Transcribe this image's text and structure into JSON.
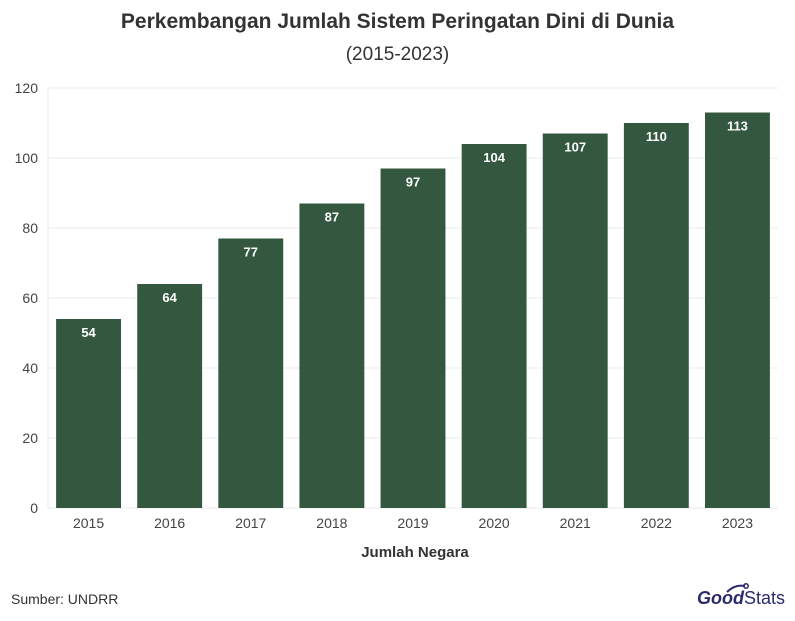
{
  "chart_data": {
    "type": "bar",
    "title": "Perkembangan Jumlah Sistem Peringatan Dini di Dunia",
    "subtitle": "(2015-2023)",
    "categories": [
      "2015",
      "2016",
      "2017",
      "2018",
      "2019",
      "2020",
      "2021",
      "2022",
      "2023"
    ],
    "values": [
      54,
      64,
      77,
      87,
      97,
      104,
      107,
      110,
      113
    ],
    "xlabel": "Jumlah Negara",
    "ylabel": "",
    "ylim": [
      0,
      120
    ],
    "yticks": [
      0,
      20,
      40,
      60,
      80,
      100,
      120
    ],
    "grid": true,
    "bar_color": "#33573f",
    "data_labels": true
  },
  "footer": {
    "source": "Sumber: UNDRR",
    "logo_good": "Good",
    "logo_stats": "Stats"
  },
  "colors": {
    "bar": "#33573f",
    "grid": "#ebebeb",
    "text": "#333333",
    "logo": "#2b2a6b"
  }
}
